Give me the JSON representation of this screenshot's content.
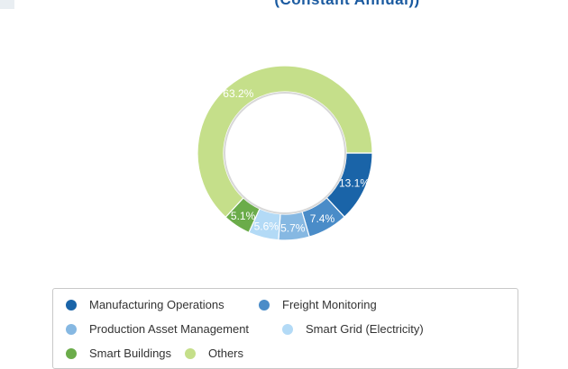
{
  "chart_data": {
    "type": "pie",
    "donut": true,
    "title": "(Constant Annual))",
    "legend_position": "bottom",
    "slices": [
      {
        "name": "Manufacturing Operations",
        "value": 13.1,
        "label": "13.1%",
        "color": "#1a64a8"
      },
      {
        "name": "Freight Monitoring",
        "value": 7.4,
        "label": "7.4%",
        "color": "#4a8cc8"
      },
      {
        "name": "Production Asset Management",
        "value": 5.7,
        "label": "5.7%",
        "color": "#86b8e2"
      },
      {
        "name": "Smart Grid (Electricity)",
        "value": 5.6,
        "label": "5.6%",
        "color": "#b3daf6"
      },
      {
        "name": "Smart Buildings",
        "value": 5.1,
        "label": "5.1%",
        "color": "#6bac4a"
      },
      {
        "name": "Others",
        "value": 63.2,
        "label": "63.2%",
        "color": "#c5df8a"
      }
    ]
  }
}
